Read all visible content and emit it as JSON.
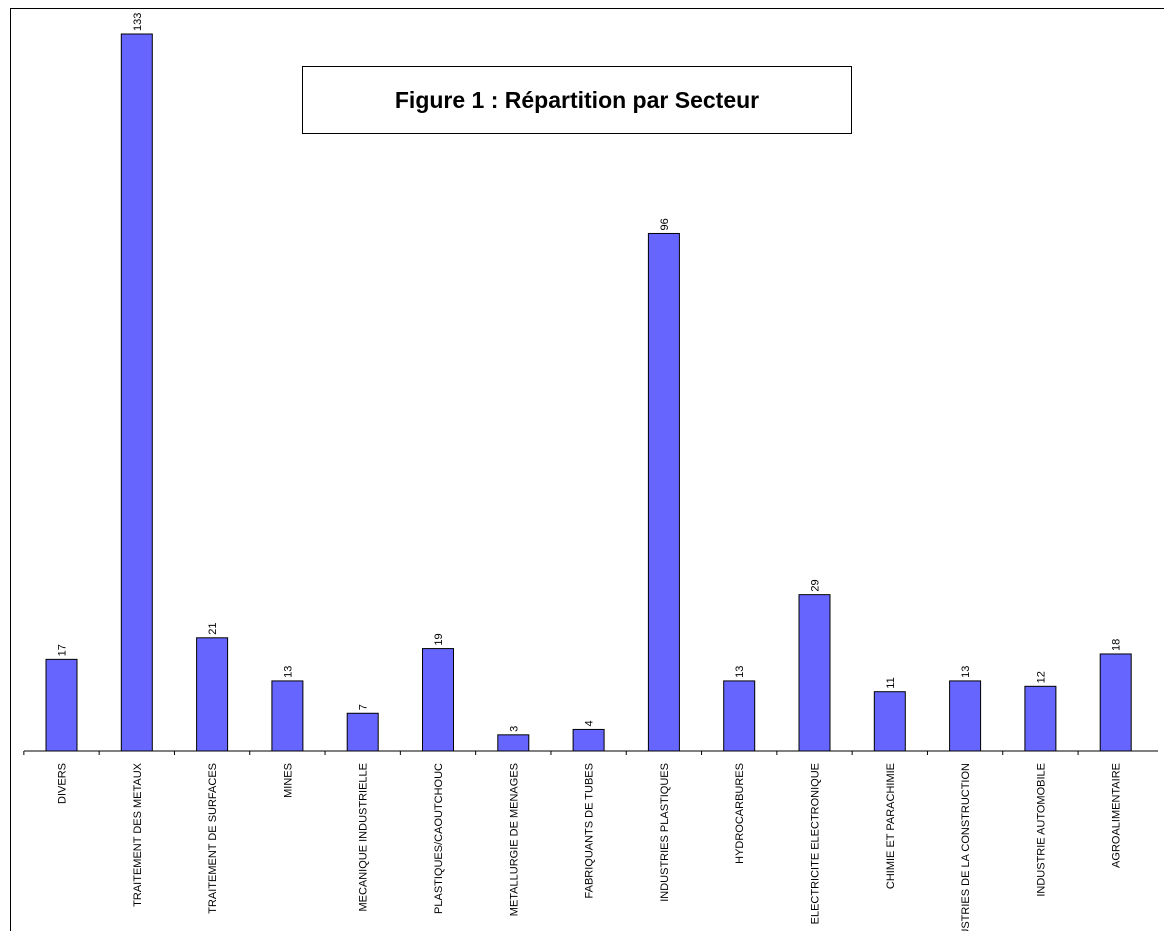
{
  "chart_data": {
    "type": "bar",
    "title": "Figure 1 : Répartition par Secteur",
    "categories": [
      "DIVERS",
      "TRAITEMENT DES METAUX",
      "TRAITEMENT DE SURFACES",
      "MINES",
      "MECANIQUE INDUSTRIELLE",
      "PLASTIQUES/CAOUTCHOUC",
      "METALLURGIE DE MENAGES",
      "FABRIQUANTS DE TUBES",
      "INDUSTRIES PLASTIQUES",
      "HYDROCARBURES",
      "ELECTRICITE ELECTRONIQUE",
      "CHIMIE ET PARACHIMIE",
      "INDUSTRIES DE LA CONSTRUCTION",
      "INDUSTRIE AUTOMOBILE",
      "AGROALIMENTAIRE"
    ],
    "values": [
      17,
      133,
      21,
      13,
      7,
      19,
      3,
      4,
      96,
      13,
      29,
      11,
      13,
      12,
      18
    ],
    "ylim": [
      0,
      133
    ],
    "bar_color": "#6666ff",
    "data_labels": true,
    "grid": false
  }
}
